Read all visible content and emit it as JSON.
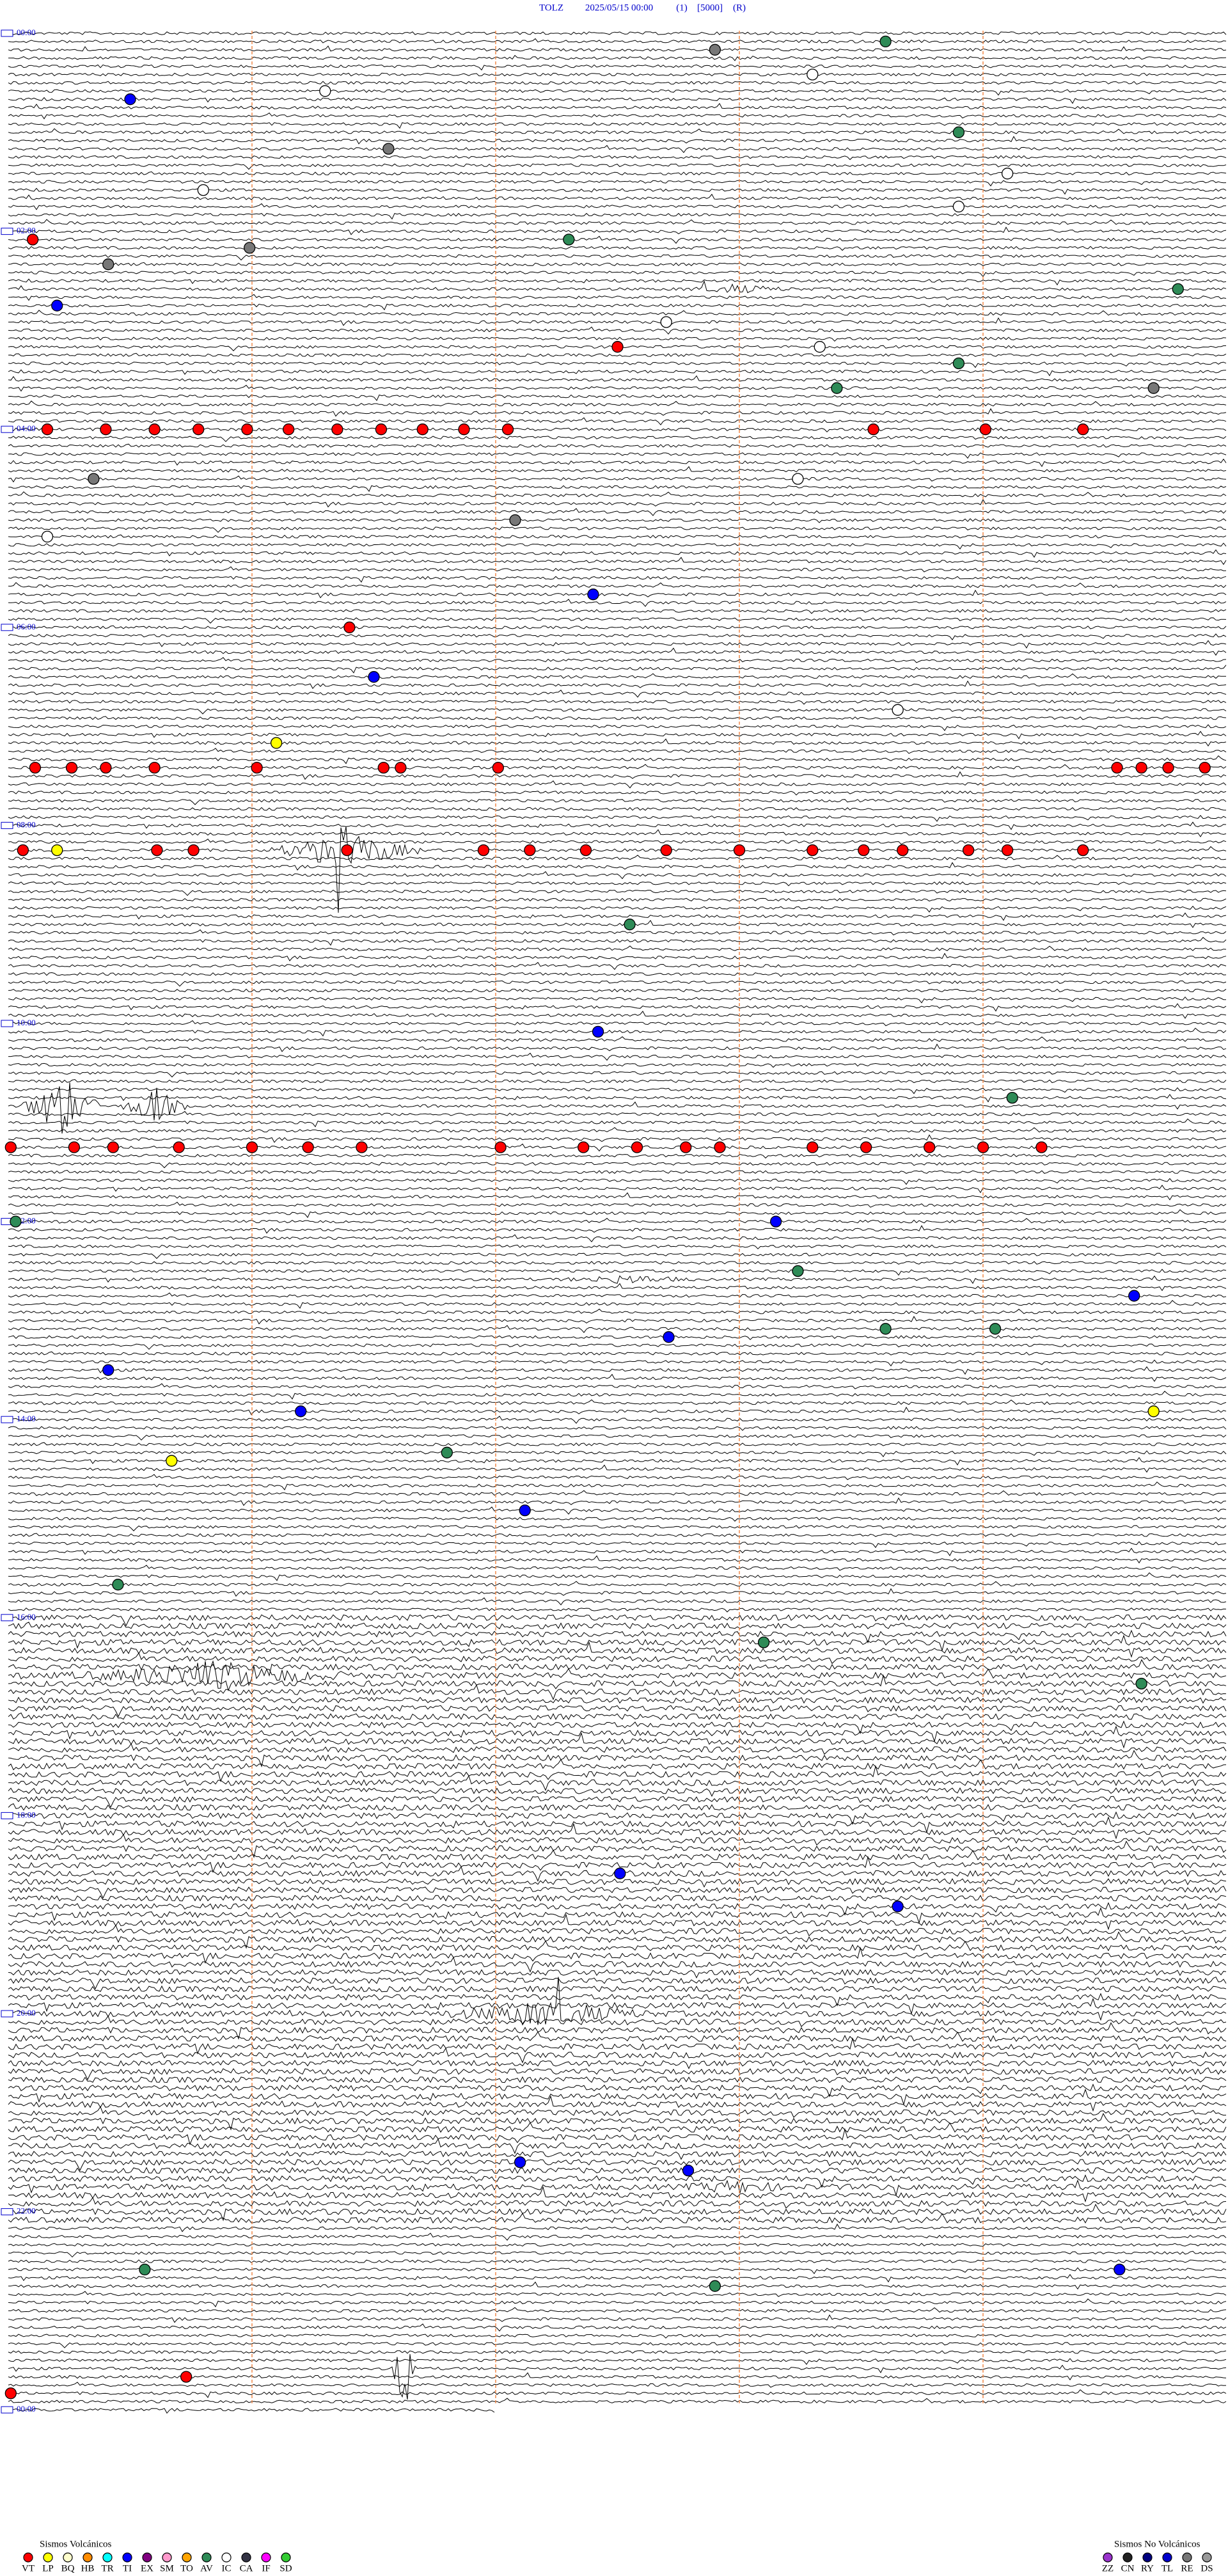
{
  "header": {
    "station": "TOLZ",
    "datetime": "2025/05/15 00:00",
    "channel": "(1)",
    "gain": "[5000]",
    "mode": "(R)"
  },
  "time_labels": [
    "00:00",
    "02:00",
    "04:00",
    "06:00",
    "08:00",
    "10:00",
    "12:00",
    "14:00",
    "16:00",
    "18:00",
    "20:00",
    "22:00",
    "00:00"
  ],
  "legend": {
    "volcanic": {
      "title": "Sismos Volcánicos",
      "items": [
        {
          "code": "VT",
          "color": "#ff0000"
        },
        {
          "code": "LP",
          "color": "#ffff00"
        },
        {
          "code": "BQ",
          "color": "#ffffcc"
        },
        {
          "code": "HB",
          "color": "#ff8c00"
        },
        {
          "code": "TR",
          "color": "#00ffff"
        },
        {
          "code": "TI",
          "color": "#0000ff"
        },
        {
          "code": "EX",
          "color": "#800080"
        },
        {
          "code": "SM",
          "color": "#ff99cc"
        },
        {
          "code": "TO",
          "color": "#ffa500"
        },
        {
          "code": "AV",
          "color": "#2e8b57"
        },
        {
          "code": "IC",
          "color": "#ffffff"
        },
        {
          "code": "CA",
          "color": "#333344"
        },
        {
          "code": "IF",
          "color": "#ff00ff"
        },
        {
          "code": "SD",
          "color": "#33cc33"
        }
      ]
    },
    "non_volcanic": {
      "title": "Sismos No Volcánicos",
      "items": [
        {
          "code": "ZZ",
          "color": "#9933cc"
        },
        {
          "code": "CN",
          "color": "#222222"
        },
        {
          "code": "RY",
          "color": "#000080"
        },
        {
          "code": "TL",
          "color": "#0000cc"
        },
        {
          "code": "RE",
          "color": "#777777"
        },
        {
          "code": "DS",
          "color": "#999999"
        }
      ]
    }
  },
  "events": [
    {
      "t": 12.9,
      "type": "RE"
    },
    {
      "t": 8.6,
      "type": "AV"
    },
    {
      "t": 40.5,
      "type": "TI"
    },
    {
      "t": 63.9,
      "type": "AV"
    },
    {
      "t": 127.3,
      "type": "AV"
    },
    {
      "t": 125.1,
      "type": "VT"
    },
    {
      "t": 159.8,
      "type": "AV"
    },
    {
      "t": 165.2,
      "type": "TI"
    },
    {
      "t": 192.5,
      "type": "VT"
    },
    {
      "t": 203.9,
      "type": "AV"
    },
    {
      "t": 218.4,
      "type": "AV"
    },
    {
      "t": 219.7,
      "type": "RE"
    },
    {
      "t": 240.16,
      "type": "VT"
    },
    {
      "t": 240.4,
      "type": "VT"
    },
    {
      "t": 240.6,
      "type": "VT"
    },
    {
      "t": 240.78,
      "type": "VT"
    },
    {
      "t": 240.98,
      "type": "VT"
    },
    {
      "t": 241.15,
      "type": "VT"
    },
    {
      "t": 241.35,
      "type": "VT"
    },
    {
      "t": 241.53,
      "type": "VT"
    },
    {
      "t": 241.7,
      "type": "VT"
    },
    {
      "t": 241.87,
      "type": "VT"
    },
    {
      "t": 242.05,
      "type": "VT"
    },
    {
      "t": 243.55,
      "type": "VT"
    },
    {
      "t": 244.01,
      "type": "VT"
    },
    {
      "t": 244.41,
      "type": "VT"
    },
    {
      "t": 342.4,
      "type": "TI"
    },
    {
      "t": 361.4,
      "type": "VT"
    },
    {
      "t": 391.5,
      "type": "TI"
    },
    {
      "t": 431.1,
      "type": "LP"
    },
    {
      "t": 445.11,
      "type": "VT"
    },
    {
      "t": 445.26,
      "type": "VT"
    },
    {
      "t": 445.4,
      "type": "VT"
    },
    {
      "t": 445.6,
      "type": "VT"
    },
    {
      "t": 446.02,
      "type": "VT"
    },
    {
      "t": 446.54,
      "type": "VT"
    },
    {
      "t": 446.61,
      "type": "VT"
    },
    {
      "t": 447.01,
      "type": "VT"
    },
    {
      "t": 449.55,
      "type": "VT"
    },
    {
      "t": 449.65,
      "type": "VT"
    },
    {
      "t": 449.76,
      "type": "VT"
    },
    {
      "t": 449.91,
      "type": "VT"
    },
    {
      "t": 495.06,
      "type": "VT"
    },
    {
      "t": 495.2,
      "type": "LP"
    },
    {
      "t": 495.61,
      "type": "VT"
    },
    {
      "t": 495.76,
      "type": "VT"
    },
    {
      "t": 496.39,
      "type": "VT"
    },
    {
      "t": 496.95,
      "type": "VT"
    },
    {
      "t": 497.14,
      "type": "VT"
    },
    {
      "t": 497.37,
      "type": "VT"
    },
    {
      "t": 497.7,
      "type": "VT"
    },
    {
      "t": 498.0,
      "type": "VT"
    },
    {
      "t": 498.3,
      "type": "VT"
    },
    {
      "t": 498.51,
      "type": "VT"
    },
    {
      "t": 498.67,
      "type": "VT"
    },
    {
      "t": 498.94,
      "type": "VT"
    },
    {
      "t": 499.1,
      "type": "VT"
    },
    {
      "t": 499.41,
      "type": "VT"
    },
    {
      "t": 542.55,
      "type": "AV"
    },
    {
      "t": 607.42,
      "type": "TI"
    },
    {
      "t": 649.12,
      "type": "AV"
    },
    {
      "t": 675.01,
      "type": "VT"
    },
    {
      "t": 675.27,
      "type": "VT"
    },
    {
      "t": 675.43,
      "type": "VT"
    },
    {
      "t": 675.7,
      "type": "VT"
    },
    {
      "t": 676.0,
      "type": "VT"
    },
    {
      "t": 676.23,
      "type": "VT"
    },
    {
      "t": 676.45,
      "type": "VT"
    },
    {
      "t": 677.02,
      "type": "VT"
    },
    {
      "t": 677.36,
      "type": "VT"
    },
    {
      "t": 677.58,
      "type": "VT"
    },
    {
      "t": 677.78,
      "type": "VT"
    },
    {
      "t": 677.92,
      "type": "VT"
    },
    {
      "t": 678.3,
      "type": "VT"
    },
    {
      "t": 678.52,
      "type": "VT"
    },
    {
      "t": 678.78,
      "type": "VT"
    },
    {
      "t": 679.0,
      "type": "VT"
    },
    {
      "t": 679.24,
      "type": "VT"
    },
    {
      "t": 720.03,
      "type": "AV"
    },
    {
      "t": 723.15,
      "type": "TI"
    },
    {
      "t": 753.24,
      "type": "AV"
    },
    {
      "t": 769.62,
      "type": "TI"
    },
    {
      "t": 792.71,
      "type": "TI"
    },
    {
      "t": 788.6,
      "type": "AV"
    },
    {
      "t": 789.05,
      "type": "AV"
    },
    {
      "t": 810.41,
      "type": "TI"
    },
    {
      "t": 839.7,
      "type": "LP"
    },
    {
      "t": 865.67,
      "type": "LP"
    },
    {
      "t": 861.8,
      "type": "AV"
    },
    {
      "t": 836.2,
      "type": "TI"
    },
    {
      "t": 897.12,
      "type": "TI"
    },
    {
      "t": 940.45,
      "type": "AV"
    },
    {
      "t": 978.1,
      "type": "AV"
    },
    {
      "t": 1004.65,
      "type": "AV"
    },
    {
      "t": 1117.51,
      "type": "TI"
    },
    {
      "t": 1138.65,
      "type": "TI"
    },
    {
      "t": 1297.79,
      "type": "TI"
    },
    {
      "t": 1292.1,
      "type": "TI"
    },
    {
      "t": 1359.56,
      "type": "TI"
    },
    {
      "t": 1355.56,
      "type": "AV"
    },
    {
      "t": 1367.9,
      "type": "AV"
    },
    {
      "t": 1420.73,
      "type": "VT"
    },
    {
      "t": 1430.01,
      "type": "VT"
    },
    {
      "t": 36.3,
      "type": "IC"
    },
    {
      "t": 28.3,
      "type": "IC"
    },
    {
      "t": 89.1,
      "type": "IC"
    },
    {
      "t": 95.8,
      "type": "IC"
    },
    {
      "t": 108.9,
      "type": "IC"
    },
    {
      "t": 177.7,
      "type": "IC"
    },
    {
      "t": 193.33,
      "type": "IC"
    },
    {
      "t": 273.24,
      "type": "IC"
    },
    {
      "t": 305.16,
      "type": "IC"
    },
    {
      "t": 413.65,
      "type": "IC"
    },
    {
      "t": 71.56,
      "type": "RE"
    },
    {
      "t": 140.41,
      "type": "RE"
    },
    {
      "t": 130.99,
      "type": "RE"
    },
    {
      "t": 297.08,
      "type": "RE"
    },
    {
      "t": 270.35,
      "type": "RE"
    }
  ]
}
